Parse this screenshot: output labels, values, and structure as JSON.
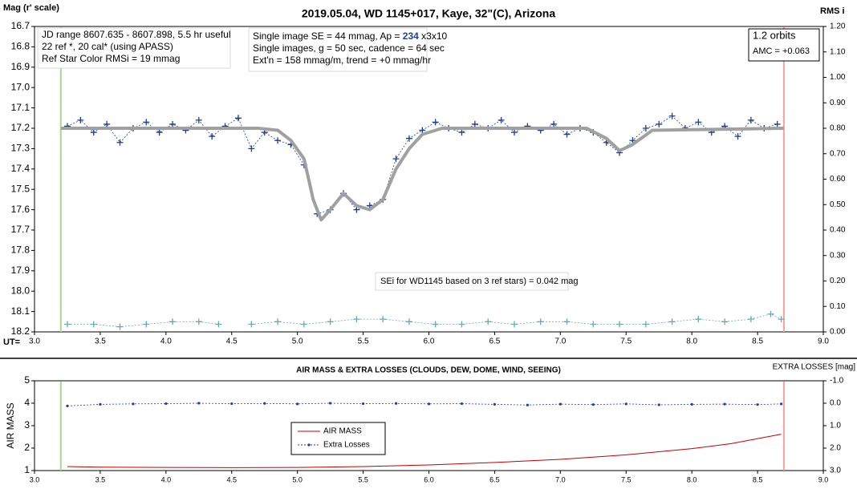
{
  "chart_data": [
    {
      "type": "line",
      "title": "2019.05.04, WD 1145+017, Kaye, 32\"(C), Arizona",
      "y_label": "Mag (r' scale)",
      "y2_label": "RMS i",
      "x_label": "UT=",
      "xlim": [
        3.0,
        9.0
      ],
      "xticks": [
        {
          "value": 3.0,
          "label": "3.0"
        },
        3.5,
        {
          "value": 4.0,
          "label": "4.0"
        },
        4.5,
        {
          "value": 5.0,
          "label": "5.0"
        },
        5.5,
        {
          "value": 6.0,
          "label": "6.0"
        },
        6.5,
        {
          "value": 7.0,
          "label": "7.0"
        },
        7.5,
        {
          "value": 8.0,
          "label": "8.0"
        },
        8.5,
        {
          "value": 9.0,
          "label": "9.0"
        }
      ],
      "ylim": [
        18.2,
        16.7
      ],
      "yticks": [
        16.7,
        16.8,
        16.9,
        {
          "value": 17.0,
          "label": "17.0"
        },
        17.1,
        17.2,
        17.3,
        17.4,
        17.5,
        17.6,
        17.7,
        17.8,
        17.9,
        {
          "value": 18.0,
          "label": "18.0"
        },
        18.1,
        18.2
      ],
      "y2lim": [
        0,
        1.2
      ],
      "y2ticks": [
        {
          "value": 0,
          "label": "0.00"
        },
        {
          "value": 0.1,
          "label": "0.10"
        },
        {
          "value": 0.2,
          "label": "0.20"
        },
        {
          "value": 0.3,
          "label": "0.30"
        },
        {
          "value": 0.4,
          "label": "0.40"
        },
        {
          "value": 0.5,
          "label": "0.50"
        },
        {
          "value": 0.6,
          "label": "0.60"
        },
        {
          "value": 0.7,
          "label": "0.70"
        },
        {
          "value": 0.8,
          "label": "0.80"
        },
        {
          "value": 0.9,
          "label": "0.90"
        },
        {
          "value": 1.0,
          "label": "1.00"
        },
        {
          "value": 1.1,
          "label": "1.10"
        },
        {
          "value": 1.2,
          "label": "1.20"
        }
      ],
      "vlines": [
        {
          "x": 3.2,
          "color": "#a8d890"
        },
        {
          "x": 8.7,
          "color": "#f2a0a0"
        }
      ],
      "series": [
        {
          "color": "#1f3d8c",
          "line": "dotted",
          "marker": "+",
          "x": [
            3.25,
            3.35,
            3.45,
            3.55,
            3.65,
            3.75,
            3.85,
            3.95,
            4.05,
            4.15,
            4.25,
            4.35,
            4.45,
            4.55,
            4.65,
            4.75,
            4.85,
            4.95,
            5.05,
            5.15,
            5.25,
            5.35,
            5.45,
            5.55,
            5.65,
            5.75,
            5.85,
            5.95,
            6.05,
            6.15,
            6.25,
            6.35,
            6.45,
            6.55,
            6.65,
            6.75,
            6.85,
            6.95,
            7.05,
            7.15,
            7.25,
            7.35,
            7.45,
            7.55,
            7.65,
            7.75,
            7.85,
            7.95,
            8.05,
            8.15,
            8.25,
            8.35,
            8.45,
            8.55,
            8.65
          ],
          "values": [
            17.19,
            17.16,
            17.22,
            17.18,
            17.27,
            17.2,
            17.17,
            17.22,
            17.18,
            17.21,
            17.16,
            17.24,
            17.19,
            17.15,
            17.3,
            17.22,
            17.26,
            17.28,
            17.38,
            17.62,
            17.6,
            17.52,
            17.6,
            17.58,
            17.55,
            17.35,
            17.25,
            17.21,
            17.17,
            17.2,
            17.22,
            17.18,
            17.2,
            17.16,
            17.22,
            17.19,
            17.21,
            17.18,
            17.23,
            17.2,
            17.22,
            17.27,
            17.32,
            17.26,
            17.2,
            17.18,
            17.14,
            17.2,
            17.17,
            17.22,
            17.19,
            17.24,
            17.16,
            17.2,
            17.18
          ]
        },
        {
          "color": "#a0a0a0",
          "line": "thick",
          "marker": null,
          "x": [
            3.2,
            4.7,
            4.85,
            4.95,
            5.05,
            5.12,
            5.18,
            5.25,
            5.35,
            5.45,
            5.55,
            5.65,
            5.75,
            5.85,
            5.95,
            6.1,
            7.2,
            7.35,
            7.45,
            7.55,
            7.7,
            8.7
          ],
          "values": [
            17.2,
            17.2,
            17.21,
            17.26,
            17.35,
            17.55,
            17.65,
            17.6,
            17.52,
            17.58,
            17.6,
            17.55,
            17.4,
            17.3,
            17.23,
            17.2,
            17.2,
            17.25,
            17.31,
            17.28,
            17.21,
            17.2
          ]
        },
        {
          "color": "#6aa8b0",
          "line": "dotted",
          "marker": "+",
          "axis": "y2",
          "x": [
            3.25,
            3.45,
            3.65,
            3.85,
            4.05,
            4.25,
            4.4,
            4.5,
            4.65,
            4.85,
            5.05,
            5.25,
            5.45,
            5.65,
            5.85,
            6.05,
            6.25,
            6.45,
            6.65,
            6.85,
            7.05,
            7.25,
            7.45,
            7.65,
            7.85,
            8.05,
            8.25,
            8.45,
            8.6,
            8.68
          ],
          "values": [
            0.03,
            0.03,
            0.02,
            0.03,
            0.04,
            0.04,
            0.03,
            null,
            0.03,
            0.04,
            0.03,
            0.04,
            0.05,
            0.05,
            0.04,
            0.03,
            0.03,
            0.04,
            0.03,
            0.04,
            0.04,
            0.03,
            0.03,
            0.03,
            0.04,
            0.05,
            0.04,
            0.05,
            0.07,
            0.05
          ]
        }
      ],
      "annotations": [
        [
          "JD range 8607.635 - 8607.898, 5.5 hr useful",
          "22 ref *, 20 cal* (using APASS)",
          "Ref Star Color RMSi = 19 mmag"
        ],
        [
          [
            "Single image SE = 44 mmag, Ap = ",
            "234",
            " x3x10"
          ],
          "Single images, g = 50 sec, cadence = 64 sec",
          "Ext'n = 158 mmag/m, trend = +0 mmag/hr"
        ],
        [
          "1.2 orbits",
          "AMC = +0.063"
        ],
        [
          "SEi for WD1145 based on 3 ref stars) = 0.042 mag"
        ]
      ]
    },
    {
      "type": "line",
      "title": "AIR MASS & EXTRA LOSSES (CLOUDS, DEW, DOME, WIND, SEEING)",
      "y_label": "AIR MASS",
      "y2_label": "EXTRA LOSSES [mag]",
      "xlim": [
        3.0,
        9.0
      ],
      "xticks": [
        {
          "value": 3.0,
          "label": "3.0"
        },
        3.5,
        {
          "value": 4.0,
          "label": "4.0"
        },
        4.5,
        {
          "value": 5.0,
          "label": "5.0"
        },
        5.5,
        {
          "value": 6.0,
          "label": "6.0"
        },
        6.5,
        {
          "value": 7.0,
          "label": "7.0"
        },
        7.5,
        {
          "value": 8.0,
          "label": "8.0"
        },
        8.5,
        {
          "value": 9.0,
          "label": "9.0"
        }
      ],
      "ylim": [
        1,
        5
      ],
      "yticks": [
        1,
        2,
        3,
        4,
        5
      ],
      "y2lim": [
        3.0,
        -1.0
      ],
      "y2ticks": [
        {
          "value": -1.0,
          "label": "-1.0"
        },
        {
          "value": 0.0,
          "label": "0.0"
        },
        {
          "value": 1.0,
          "label": "1.0"
        },
        {
          "value": 2.0,
          "label": "2.0"
        },
        {
          "value": 3.0,
          "label": "3.0"
        }
      ],
      "vlines": [
        {
          "x": 3.2,
          "color": "#a8d890"
        },
        {
          "x": 8.7,
          "color": "#f2a0a0"
        }
      ],
      "legend": "center",
      "series": [
        {
          "name": "AIR MASS",
          "color": "#c00000",
          "line": "solid",
          "marker": null,
          "x": [
            3.25,
            3.5,
            4.0,
            4.5,
            5.0,
            5.5,
            6.0,
            6.5,
            7.0,
            7.5,
            8.0,
            8.3,
            8.68
          ],
          "values": [
            1.18,
            1.15,
            1.14,
            1.13,
            1.14,
            1.18,
            1.25,
            1.36,
            1.5,
            1.7,
            1.98,
            2.2,
            2.62
          ]
        },
        {
          "name": "Extra Losses",
          "color": "#1f3da0",
          "line": "dotted",
          "marker": "dot",
          "axis": "y2",
          "x": [
            3.25,
            3.5,
            3.75,
            4.0,
            4.25,
            4.5,
            4.75,
            5.0,
            5.25,
            5.5,
            5.75,
            6.0,
            6.25,
            6.5,
            6.75,
            7.0,
            7.25,
            7.5,
            7.75,
            8.0,
            8.25,
            8.5,
            8.68
          ],
          "values": [
            0.12,
            0.05,
            0.03,
            0.02,
            0.0,
            0.02,
            0.01,
            0.03,
            0.0,
            0.02,
            0.01,
            0.03,
            0.02,
            0.05,
            0.08,
            0.04,
            0.06,
            0.03,
            0.07,
            0.05,
            0.04,
            0.06,
            0.03
          ]
        }
      ]
    }
  ]
}
